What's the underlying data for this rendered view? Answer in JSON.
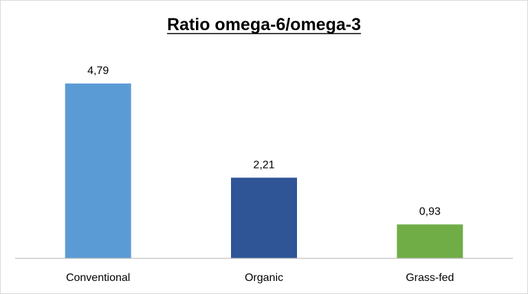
{
  "chart_data": {
    "type": "bar",
    "title": "Ratio omega-6/omega-3",
    "categories": [
      "Conventional",
      "Organic",
      "Grass-fed"
    ],
    "values": [
      4.79,
      2.21,
      0.93
    ],
    "data_labels": [
      "4,79",
      "2,21",
      "0,93"
    ],
    "bar_colors": [
      "#5b9bd5",
      "#2f5597",
      "#70ad47"
    ],
    "ylim": [
      0,
      5.5
    ],
    "xlabel": "",
    "ylabel": "",
    "grid": false,
    "legend": "none",
    "title_underlined": true
  }
}
